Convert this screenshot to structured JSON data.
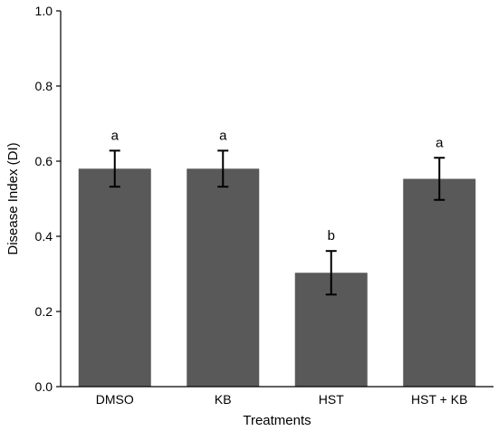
{
  "chart_data": {
    "type": "bar",
    "categories": [
      "DMSO",
      "KB",
      "HST",
      "HST + KB"
    ],
    "values": [
      0.58,
      0.58,
      0.303,
      0.553
    ],
    "error": [
      0.048,
      0.048,
      0.058,
      0.056
    ],
    "significance_letters": [
      "a",
      "a",
      "b",
      "a"
    ],
    "xlabel": "Treatments",
    "ylabel": "Disease Index (DI)",
    "ylim": [
      0,
      1.0
    ],
    "yticks": [
      "0.0",
      "0.2",
      "0.4",
      "0.6",
      "0.8",
      "1.0"
    ],
    "bar_color": "#595959",
    "grid": false,
    "legend": "none"
  }
}
